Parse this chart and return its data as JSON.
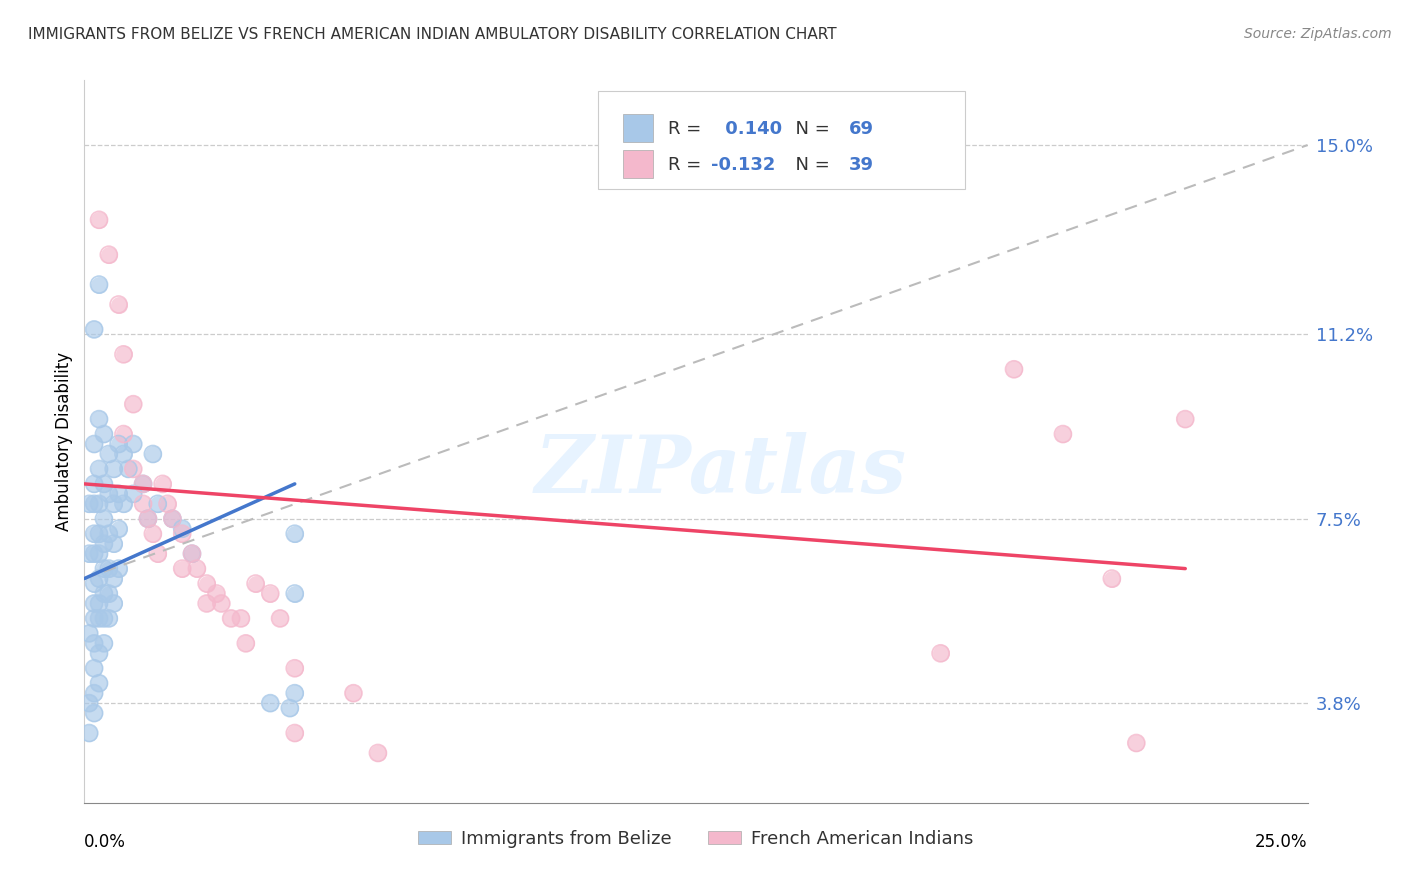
{
  "title": "IMMIGRANTS FROM BELIZE VS FRENCH AMERICAN INDIAN AMBULATORY DISABILITY CORRELATION CHART",
  "source": "Source: ZipAtlas.com",
  "ylabel": "Ambulatory Disability",
  "ytick_labels": [
    "3.8%",
    "7.5%",
    "11.2%",
    "15.0%"
  ],
  "ytick_vals": [
    0.038,
    0.075,
    0.112,
    0.15
  ],
  "xlim": [
    0.0,
    0.25
  ],
  "ylim": [
    0.018,
    0.163
  ],
  "r_blue": 0.14,
  "n_blue": 69,
  "r_pink": -0.132,
  "n_pink": 39,
  "color_blue": "#a8c8e8",
  "color_pink": "#f4b8cc",
  "line_blue": "#4477cc",
  "line_pink": "#ee4466",
  "line_dash_color": "#bbbbbb",
  "text_blue": "#4477cc",
  "text_dark": "#333333",
  "watermark": "ZIPatlas",
  "blue_points": [
    [
      0.001,
      0.078
    ],
    [
      0.001,
      0.068
    ],
    [
      0.001,
      0.052
    ],
    [
      0.001,
      0.038
    ],
    [
      0.001,
      0.032
    ],
    [
      0.002,
      0.113
    ],
    [
      0.002,
      0.09
    ],
    [
      0.002,
      0.082
    ],
    [
      0.002,
      0.078
    ],
    [
      0.002,
      0.072
    ],
    [
      0.002,
      0.068
    ],
    [
      0.002,
      0.062
    ],
    [
      0.002,
      0.058
    ],
    [
      0.002,
      0.055
    ],
    [
      0.002,
      0.05
    ],
    [
      0.002,
      0.045
    ],
    [
      0.002,
      0.04
    ],
    [
      0.002,
      0.036
    ],
    [
      0.003,
      0.122
    ],
    [
      0.003,
      0.095
    ],
    [
      0.003,
      0.085
    ],
    [
      0.003,
      0.078
    ],
    [
      0.003,
      0.072
    ],
    [
      0.003,
      0.068
    ],
    [
      0.003,
      0.063
    ],
    [
      0.003,
      0.058
    ],
    [
      0.003,
      0.055
    ],
    [
      0.003,
      0.048
    ],
    [
      0.003,
      0.042
    ],
    [
      0.004,
      0.092
    ],
    [
      0.004,
      0.082
    ],
    [
      0.004,
      0.075
    ],
    [
      0.004,
      0.07
    ],
    [
      0.004,
      0.065
    ],
    [
      0.004,
      0.06
    ],
    [
      0.004,
      0.055
    ],
    [
      0.004,
      0.05
    ],
    [
      0.005,
      0.088
    ],
    [
      0.005,
      0.08
    ],
    [
      0.005,
      0.072
    ],
    [
      0.005,
      0.065
    ],
    [
      0.005,
      0.06
    ],
    [
      0.005,
      0.055
    ],
    [
      0.006,
      0.085
    ],
    [
      0.006,
      0.078
    ],
    [
      0.006,
      0.07
    ],
    [
      0.006,
      0.063
    ],
    [
      0.006,
      0.058
    ],
    [
      0.007,
      0.09
    ],
    [
      0.007,
      0.08
    ],
    [
      0.007,
      0.073
    ],
    [
      0.007,
      0.065
    ],
    [
      0.008,
      0.088
    ],
    [
      0.008,
      0.078
    ],
    [
      0.009,
      0.085
    ],
    [
      0.01,
      0.09
    ],
    [
      0.01,
      0.08
    ],
    [
      0.012,
      0.082
    ],
    [
      0.013,
      0.075
    ],
    [
      0.014,
      0.088
    ],
    [
      0.015,
      0.078
    ],
    [
      0.018,
      0.075
    ],
    [
      0.02,
      0.073
    ],
    [
      0.022,
      0.068
    ],
    [
      0.038,
      0.038
    ],
    [
      0.042,
      0.037
    ],
    [
      0.043,
      0.04
    ],
    [
      0.043,
      0.06
    ],
    [
      0.043,
      0.072
    ]
  ],
  "pink_points": [
    [
      0.003,
      0.135
    ],
    [
      0.005,
      0.128
    ],
    [
      0.007,
      0.118
    ],
    [
      0.008,
      0.108
    ],
    [
      0.01,
      0.098
    ],
    [
      0.008,
      0.092
    ],
    [
      0.01,
      0.085
    ],
    [
      0.012,
      0.082
    ],
    [
      0.012,
      0.078
    ],
    [
      0.013,
      0.075
    ],
    [
      0.014,
      0.072
    ],
    [
      0.015,
      0.068
    ],
    [
      0.016,
      0.082
    ],
    [
      0.017,
      0.078
    ],
    [
      0.018,
      0.075
    ],
    [
      0.02,
      0.072
    ],
    [
      0.02,
      0.065
    ],
    [
      0.022,
      0.068
    ],
    [
      0.023,
      0.065
    ],
    [
      0.025,
      0.062
    ],
    [
      0.025,
      0.058
    ],
    [
      0.027,
      0.06
    ],
    [
      0.028,
      0.058
    ],
    [
      0.03,
      0.055
    ],
    [
      0.032,
      0.055
    ],
    [
      0.033,
      0.05
    ],
    [
      0.035,
      0.062
    ],
    [
      0.038,
      0.06
    ],
    [
      0.04,
      0.055
    ],
    [
      0.043,
      0.045
    ],
    [
      0.043,
      0.032
    ],
    [
      0.055,
      0.04
    ],
    [
      0.06,
      0.028
    ],
    [
      0.175,
      0.048
    ],
    [
      0.19,
      0.105
    ],
    [
      0.2,
      0.092
    ],
    [
      0.21,
      0.063
    ],
    [
      0.215,
      0.03
    ],
    [
      0.225,
      0.095
    ]
  ],
  "blue_line_x": [
    0.0,
    0.043
  ],
  "blue_line_y": [
    0.063,
    0.082
  ],
  "pink_line_x": [
    0.0,
    0.225
  ],
  "pink_line_y": [
    0.082,
    0.065
  ],
  "dash_line_x": [
    0.0,
    0.25
  ],
  "dash_line_y": [
    0.063,
    0.15
  ]
}
